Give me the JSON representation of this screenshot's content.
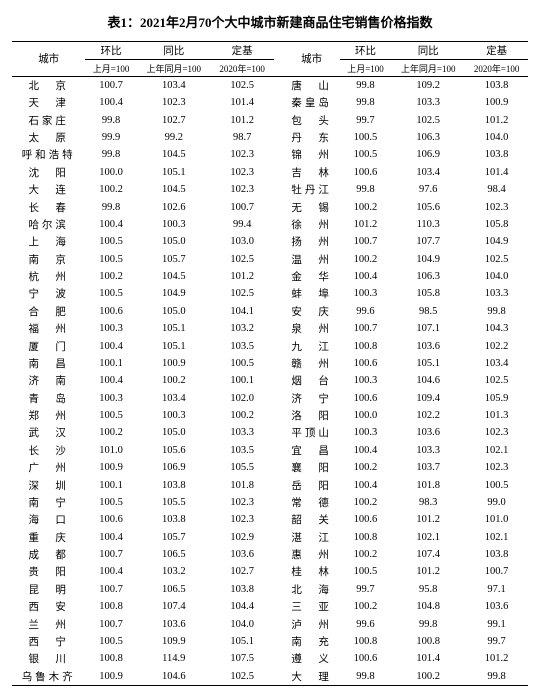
{
  "title": "表1：2021年2月70个大中城市新建商品住宅销售价格指数",
  "headers": {
    "city": "城市",
    "mom": "环比",
    "mom_sub": "上月=100",
    "yoy": "同比",
    "yoy_sub": "上年同月=100",
    "base": "定基",
    "base_sub": "2020年=100"
  },
  "left": [
    {
      "c": "北　京",
      "m": "100.7",
      "y": "103.4",
      "b": "102.5"
    },
    {
      "c": "天　津",
      "m": "100.4",
      "y": "102.3",
      "b": "101.4"
    },
    {
      "c": "石家庄",
      "m": "99.8",
      "y": "102.7",
      "b": "101.2"
    },
    {
      "c": "太　原",
      "m": "99.9",
      "y": "99.2",
      "b": "98.7"
    },
    {
      "c": "呼和浩特",
      "m": "99.8",
      "y": "104.5",
      "b": "102.3"
    },
    {
      "c": "沈　阳",
      "m": "100.0",
      "y": "105.1",
      "b": "102.3"
    },
    {
      "c": "大　连",
      "m": "100.2",
      "y": "104.5",
      "b": "102.3"
    },
    {
      "c": "长　春",
      "m": "99.8",
      "y": "102.6",
      "b": "100.7"
    },
    {
      "c": "哈尔滨",
      "m": "100.4",
      "y": "100.3",
      "b": "99.4"
    },
    {
      "c": "上　海",
      "m": "100.5",
      "y": "105.0",
      "b": "103.0"
    },
    {
      "c": "南　京",
      "m": "100.5",
      "y": "105.7",
      "b": "102.5"
    },
    {
      "c": "杭　州",
      "m": "100.2",
      "y": "104.5",
      "b": "101.2"
    },
    {
      "c": "宁　波",
      "m": "100.5",
      "y": "104.9",
      "b": "102.5"
    },
    {
      "c": "合　肥",
      "m": "100.6",
      "y": "105.0",
      "b": "104.1"
    },
    {
      "c": "福　州",
      "m": "100.3",
      "y": "105.1",
      "b": "103.2"
    },
    {
      "c": "厦　门",
      "m": "100.4",
      "y": "105.1",
      "b": "103.5"
    },
    {
      "c": "南　昌",
      "m": "100.1",
      "y": "100.9",
      "b": "100.5"
    },
    {
      "c": "济　南",
      "m": "100.4",
      "y": "100.2",
      "b": "100.1"
    },
    {
      "c": "青　岛",
      "m": "100.3",
      "y": "103.4",
      "b": "102.0"
    },
    {
      "c": "郑　州",
      "m": "100.5",
      "y": "100.3",
      "b": "100.2"
    },
    {
      "c": "武　汉",
      "m": "100.2",
      "y": "105.0",
      "b": "103.3"
    },
    {
      "c": "长　沙",
      "m": "101.0",
      "y": "105.6",
      "b": "103.5"
    },
    {
      "c": "广　州",
      "m": "100.9",
      "y": "106.9",
      "b": "105.5"
    },
    {
      "c": "深　圳",
      "m": "100.1",
      "y": "103.8",
      "b": "101.8"
    },
    {
      "c": "南　宁",
      "m": "100.5",
      "y": "105.5",
      "b": "102.3"
    },
    {
      "c": "海　口",
      "m": "100.6",
      "y": "103.8",
      "b": "102.3"
    },
    {
      "c": "重　庆",
      "m": "100.4",
      "y": "105.7",
      "b": "102.9"
    },
    {
      "c": "成　都",
      "m": "100.7",
      "y": "106.5",
      "b": "103.6"
    },
    {
      "c": "贵　阳",
      "m": "100.4",
      "y": "103.2",
      "b": "102.7"
    },
    {
      "c": "昆　明",
      "m": "100.7",
      "y": "106.5",
      "b": "103.8"
    },
    {
      "c": "西　安",
      "m": "100.8",
      "y": "107.4",
      "b": "104.4"
    },
    {
      "c": "兰　州",
      "m": "100.7",
      "y": "103.6",
      "b": "104.0"
    },
    {
      "c": "西　宁",
      "m": "100.5",
      "y": "109.9",
      "b": "105.1"
    },
    {
      "c": "银　川",
      "m": "100.8",
      "y": "114.9",
      "b": "107.5"
    },
    {
      "c": "乌鲁木齐",
      "m": "100.9",
      "y": "104.6",
      "b": "102.5"
    }
  ],
  "right": [
    {
      "c": "唐　山",
      "m": "99.8",
      "y": "109.2",
      "b": "103.8"
    },
    {
      "c": "秦皇岛",
      "m": "99.8",
      "y": "103.3",
      "b": "100.9"
    },
    {
      "c": "包　头",
      "m": "99.7",
      "y": "102.5",
      "b": "101.2"
    },
    {
      "c": "丹　东",
      "m": "100.5",
      "y": "106.3",
      "b": "104.0"
    },
    {
      "c": "锦　州",
      "m": "100.5",
      "y": "106.9",
      "b": "103.8"
    },
    {
      "c": "吉　林",
      "m": "100.6",
      "y": "103.4",
      "b": "101.4"
    },
    {
      "c": "牡丹江",
      "m": "99.8",
      "y": "97.6",
      "b": "98.4"
    },
    {
      "c": "无　锡",
      "m": "100.2",
      "y": "105.6",
      "b": "102.3"
    },
    {
      "c": "徐　州",
      "m": "101.2",
      "y": "110.3",
      "b": "105.8"
    },
    {
      "c": "扬　州",
      "m": "100.7",
      "y": "107.7",
      "b": "104.9"
    },
    {
      "c": "温　州",
      "m": "100.2",
      "y": "104.9",
      "b": "102.5"
    },
    {
      "c": "金　华",
      "m": "100.4",
      "y": "106.3",
      "b": "104.0"
    },
    {
      "c": "蚌　埠",
      "m": "100.3",
      "y": "105.8",
      "b": "103.3"
    },
    {
      "c": "安　庆",
      "m": "99.6",
      "y": "98.5",
      "b": "99.8"
    },
    {
      "c": "泉　州",
      "m": "100.7",
      "y": "107.1",
      "b": "104.3"
    },
    {
      "c": "九　江",
      "m": "100.8",
      "y": "103.6",
      "b": "102.2"
    },
    {
      "c": "赣　州",
      "m": "100.6",
      "y": "105.1",
      "b": "103.4"
    },
    {
      "c": "烟　台",
      "m": "100.3",
      "y": "104.6",
      "b": "102.5"
    },
    {
      "c": "济　宁",
      "m": "100.6",
      "y": "109.4",
      "b": "105.9"
    },
    {
      "c": "洛　阳",
      "m": "100.0",
      "y": "102.2",
      "b": "101.3"
    },
    {
      "c": "平顶山",
      "m": "100.3",
      "y": "103.6",
      "b": "102.3"
    },
    {
      "c": "宜　昌",
      "m": "100.4",
      "y": "103.3",
      "b": "102.1"
    },
    {
      "c": "襄　阳",
      "m": "100.2",
      "y": "103.7",
      "b": "102.3"
    },
    {
      "c": "岳　阳",
      "m": "100.4",
      "y": "101.8",
      "b": "100.5"
    },
    {
      "c": "常　德",
      "m": "100.2",
      "y": "98.3",
      "b": "99.0"
    },
    {
      "c": "韶　关",
      "m": "100.6",
      "y": "101.2",
      "b": "101.0"
    },
    {
      "c": "湛　江",
      "m": "100.8",
      "y": "102.1",
      "b": "102.1"
    },
    {
      "c": "惠　州",
      "m": "100.2",
      "y": "107.4",
      "b": "103.8"
    },
    {
      "c": "桂　林",
      "m": "100.5",
      "y": "101.2",
      "b": "100.7"
    },
    {
      "c": "北　海",
      "m": "99.7",
      "y": "95.8",
      "b": "97.1"
    },
    {
      "c": "三　亚",
      "m": "100.2",
      "y": "104.8",
      "b": "103.6"
    },
    {
      "c": "泸　州",
      "m": "99.6",
      "y": "99.8",
      "b": "99.1"
    },
    {
      "c": "南　充",
      "m": "100.8",
      "y": "100.8",
      "b": "99.7"
    },
    {
      "c": "遵　义",
      "m": "100.6",
      "y": "101.4",
      "b": "101.2"
    },
    {
      "c": "大　理",
      "m": "99.8",
      "y": "100.2",
      "b": "99.8"
    }
  ]
}
